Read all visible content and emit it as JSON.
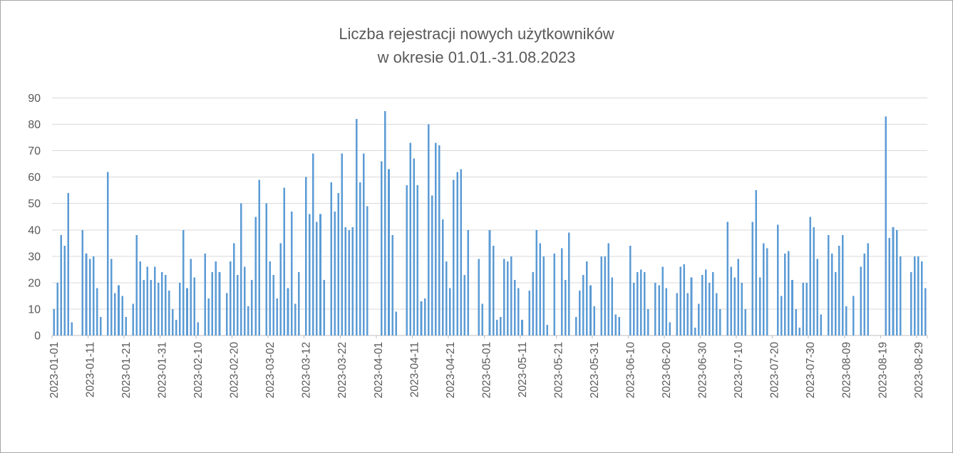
{
  "window": {
    "background": "#ffffff",
    "border_color": "#a6a6a6"
  },
  "chart_data": {
    "type": "bar",
    "title": "Liczba rejestracji nowych użytkowników",
    "subtitle": "w okresie 01.01.-31.08.2023",
    "start_date": "2023-01-01",
    "end_date": "2023-08-31",
    "ylabel": "",
    "xlabel": "",
    "ylim": [
      0,
      90
    ],
    "y_ticks": [
      0,
      10,
      20,
      30,
      40,
      50,
      60,
      70,
      80,
      90
    ],
    "x_tick_labels": [
      "2023-01-01",
      "2023-01-11",
      "2023-01-21",
      "2023-01-31",
      "2023-02-10",
      "2023-02-20",
      "2023-03-02",
      "2023-03-12",
      "2023-03-22",
      "2023-04-01",
      "2023-04-11",
      "2023-04-21",
      "2023-05-01",
      "2023-05-11",
      "2023-05-21",
      "2023-05-31",
      "2023-06-10",
      "2023-06-20",
      "2023-06-30",
      "2023-07-10",
      "2023-07-20",
      "2023-07-30",
      "2023-08-09",
      "2023-08-19",
      "2023-08-29"
    ],
    "x_tick_interval_days": 10,
    "grid": true,
    "legend": false,
    "bar_color": "#5b9bd5",
    "gridline_color": "#d9d9d9",
    "axis_color": "#bfbfbf",
    "text_color": "#595959",
    "values": [
      10,
      20,
      38,
      34,
      54,
      5,
      0,
      0,
      40,
      31,
      29,
      30,
      18,
      7,
      0,
      62,
      29,
      16,
      19,
      15,
      7,
      0,
      12,
      38,
      28,
      21,
      26,
      21,
      26,
      20,
      24,
      23,
      17,
      10,
      6,
      20,
      40,
      18,
      29,
      22,
      5,
      0,
      31,
      14,
      24,
      28,
      24,
      0,
      16,
      28,
      35,
      23,
      50,
      26,
      11,
      21,
      45,
      59,
      0,
      50,
      28,
      23,
      14,
      35,
      56,
      18,
      47,
      12,
      24,
      0,
      60,
      46,
      69,
      43,
      46,
      21,
      0,
      58,
      47,
      54,
      69,
      41,
      40,
      41,
      82,
      58,
      69,
      49,
      0,
      0,
      0,
      66,
      85,
      63,
      38,
      9,
      0,
      0,
      57,
      73,
      67,
      57,
      13,
      14,
      80,
      53,
      73,
      72,
      44,
      28,
      18,
      59,
      62,
      63,
      23,
      40,
      0,
      0,
      29,
      12,
      0,
      40,
      34,
      6,
      7,
      29,
      28,
      30,
      21,
      18,
      6,
      0,
      17,
      24,
      40,
      35,
      30,
      4,
      0,
      31,
      0,
      33,
      21,
      39,
      0,
      7,
      17,
      23,
      28,
      19,
      11,
      0,
      30,
      30,
      35,
      22,
      8,
      7,
      0,
      0,
      34,
      20,
      24,
      25,
      24,
      10,
      0,
      20,
      19,
      26,
      18,
      5,
      0,
      16,
      26,
      27,
      16,
      22,
      3,
      12,
      23,
      25,
      20,
      24,
      16,
      10,
      0,
      43,
      26,
      22,
      29,
      20,
      10,
      0,
      43,
      55,
      22,
      35,
      33,
      0,
      0,
      42,
      15,
      31,
      32,
      21,
      10,
      3,
      20,
      20,
      45,
      41,
      29,
      8,
      0,
      38,
      31,
      24,
      34,
      38,
      11,
      0,
      15,
      0,
      26,
      31,
      35,
      0,
      0,
      0,
      0,
      83,
      37,
      41,
      40,
      30,
      0,
      0,
      24,
      30,
      30,
      28,
      18
    ]
  }
}
